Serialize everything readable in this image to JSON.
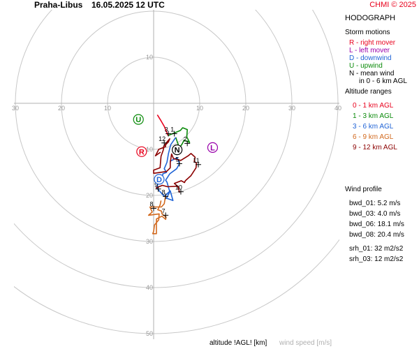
{
  "header": {
    "station": "Praha-Libus",
    "datetime": "16.05.2025 12 UTC",
    "copyright": "CHMI © 2025"
  },
  "sidebar": {
    "title": "HODOGRAPH",
    "storm_motions": {
      "heading": "Storm motions",
      "items": [
        {
          "text": "R - right mover",
          "color": "#e8001c"
        },
        {
          "text": "L - left mover",
          "color": "#9900aa"
        },
        {
          "text": "D - downwind",
          "color": "#1f63d6"
        },
        {
          "text": "U - upwind",
          "color": "#0a8a0a"
        },
        {
          "text": "N - mean wind",
          "color": "#000000"
        },
        {
          "text": "in 0 - 6 km AGL",
          "color": "#000000"
        }
      ]
    },
    "altitude_ranges": {
      "heading": "Altitude ranges",
      "items": [
        {
          "text": "0 - 1 km AGL",
          "color": "#e8001c"
        },
        {
          "text": "1 - 3 km AGL",
          "color": "#0a8a0a"
        },
        {
          "text": "3 - 6 km AGL",
          "color": "#1f63d6"
        },
        {
          "text": "6 - 9 km AGL",
          "color": "#d2691e"
        },
        {
          "text": "9 - 12 km AGL",
          "color": "#8b0000"
        }
      ]
    },
    "wind_profile": {
      "heading": "Wind profile",
      "items": [
        {
          "text": "bwd_01: 5.2 m/s"
        },
        {
          "text": "bwd_03: 4.0 m/s"
        },
        {
          "text": "bwd_06: 18.1 m/s"
        },
        {
          "text": "bwd_08: 20.4 m/s"
        },
        {
          "text": "srh_01: 32 m2/s2"
        },
        {
          "text": "srh_03: 12 m2/s2"
        }
      ]
    }
  },
  "footer": {
    "altitude_label": "altitude !AGL! [km]",
    "wind_speed_label": "wind speed [m/s]"
  },
  "chart_data": {
    "type": "line",
    "title": "HODOGRAPH",
    "xlim": [
      -30,
      40
    ],
    "ylim": [
      -50,
      20
    ],
    "rings": [
      10,
      20,
      30,
      40,
      50
    ],
    "ring_labels": [
      "10",
      "20",
      "30",
      "40",
      "50"
    ],
    "axis_labels": [
      "30",
      "20",
      "10",
      "10",
      "20",
      "30",
      "40"
    ],
    "axis_label_positions": [
      -30,
      -20,
      -10,
      10,
      20,
      30,
      40
    ],
    "grid": true,
    "series": [
      {
        "name": "0 - 1 km AGL",
        "color": "#e8001c",
        "points": [
          [
            0.8,
            -2.5
          ],
          [
            1.6,
            -3.8
          ],
          [
            2.3,
            -5.0
          ],
          [
            2.8,
            -6.2
          ],
          [
            3.1,
            -7.0
          ]
        ]
      },
      {
        "name": "1 - 3 km AGL",
        "color": "#0a8a0a",
        "points": [
          [
            3.1,
            -7.0
          ],
          [
            4.6,
            -6.4
          ],
          [
            5.8,
            -5.9
          ],
          [
            6.3,
            -5.3
          ],
          [
            7.3,
            -5.7
          ],
          [
            7.2,
            -7.3
          ],
          [
            7.8,
            -8.5
          ],
          [
            6.6,
            -8.0
          ],
          [
            6.2,
            -8.8
          ],
          [
            5.6,
            -9.7
          ],
          [
            5.0,
            -8.0
          ],
          [
            4.8,
            -7.4
          ]
        ]
      },
      {
        "name": "3 - 6 km AGL",
        "color": "#1f63d6",
        "points": [
          [
            4.8,
            -7.4
          ],
          [
            3.7,
            -9.0
          ],
          [
            3.2,
            -11.0
          ],
          [
            2.9,
            -12.8
          ],
          [
            2.3,
            -14.2
          ],
          [
            2.8,
            -15.0
          ],
          [
            2.0,
            -15.3
          ],
          [
            1.8,
            -16.5
          ],
          [
            1.0,
            -17.0
          ],
          [
            0.7,
            -18.4
          ],
          [
            2.3,
            -20.2
          ],
          [
            3.6,
            -19.0
          ],
          [
            4.2,
            -21.1
          ],
          [
            2.8,
            -20.6
          ],
          [
            3.5,
            -19.2
          ],
          [
            2.9,
            -17.1
          ],
          [
            2.6,
            -16.7
          ],
          [
            3.5,
            -15.3
          ],
          [
            5.0,
            -14.2
          ],
          [
            5.6,
            -13.1
          ],
          [
            5.1,
            -11.8
          ],
          [
            3.5,
            -12.6
          ]
        ]
      },
      {
        "name": "6 - 9 km AGL",
        "color": "#d2691e",
        "points": [
          [
            2.6,
            -20.0
          ],
          [
            2.3,
            -21.8
          ],
          [
            1.7,
            -22.5
          ],
          [
            -0.8,
            -22.5
          ],
          [
            -0.3,
            -23.6
          ],
          [
            -1.1,
            -24.3
          ],
          [
            1.2,
            -24.0
          ],
          [
            1.1,
            -25.3
          ],
          [
            0.2,
            -26.4
          ],
          [
            0.0,
            -27.8
          ],
          [
            -0.2,
            -28.3
          ],
          [
            0.6,
            -28.3
          ],
          [
            0.6,
            -25.1
          ],
          [
            1.8,
            -24.5
          ],
          [
            2.6,
            -25.2
          ],
          [
            2.7,
            -24.7
          ],
          [
            1.8,
            -24.0
          ],
          [
            1.7,
            -23.4
          ],
          [
            0.9,
            -23.1
          ],
          [
            1.4,
            -22.1
          ],
          [
            1.6,
            -21.1
          ]
        ]
      },
      {
        "name": "9 - 12 km AGL",
        "color": "#8b0000",
        "points": [
          [
            0.5,
            -18.4
          ],
          [
            1.9,
            -17.8
          ],
          [
            3.0,
            -18.1
          ],
          [
            5.3,
            -18.0
          ],
          [
            5.6,
            -19.3
          ],
          [
            5.3,
            -18.1
          ],
          [
            4.5,
            -17.4
          ],
          [
            6.0,
            -16.8
          ],
          [
            6.7,
            -17.2
          ],
          [
            6.9,
            -16.8
          ],
          [
            8.1,
            -15.7
          ],
          [
            9.2,
            -14.0
          ],
          [
            9.3,
            -13.0
          ],
          [
            8.8,
            -12.6
          ],
          [
            9.0,
            -11.7
          ],
          [
            8.1,
            -10.9
          ],
          [
            7.5,
            -11.4
          ],
          [
            5.9,
            -12.4
          ],
          [
            4.3,
            -12.0
          ],
          [
            3.9,
            -11.0
          ],
          [
            3.6,
            -12.9
          ],
          [
            3.6,
            -14.0
          ],
          [
            2.8,
            -14.8
          ],
          [
            0.0,
            -15.2
          ],
          [
            0.0,
            -14.5
          ],
          [
            1.4,
            -14.0
          ],
          [
            1.6,
            -11.5
          ],
          [
            2.1,
            -10.1
          ],
          [
            2.2,
            -9.3
          ],
          [
            2.8,
            -8.5
          ],
          [
            3.5,
            -7.7
          ],
          [
            3.2,
            -8.4
          ],
          [
            2.6,
            -9.0
          ],
          [
            2.6,
            -9.4
          ],
          [
            1.1,
            -10.0
          ],
          [
            0.4,
            -11.4
          ],
          [
            1.5,
            -10.6
          ]
        ]
      }
    ],
    "height_marks": [
      {
        "label": "1",
        "x": 4.5,
        "y": -6.6
      },
      {
        "label": "2",
        "x": 7.3,
        "y": -8.7
      },
      {
        "label": "3",
        "x": 3.2,
        "y": -6.6
      },
      {
        "label": "5",
        "x": 5.6,
        "y": -13.1
      },
      {
        "label": "7",
        "x": 2.6,
        "y": -24.3
      },
      {
        "label": "8",
        "x": 2.6,
        "y": -20.2
      },
      {
        "label": "8",
        "x": 0.0,
        "y": -22.8
      },
      {
        "label": "9",
        "x": 1.0,
        "y": -18.6
      },
      {
        "label": "10",
        "x": 5.9,
        "y": -19.2
      },
      {
        "label": "11",
        "x": 9.7,
        "y": -13.3
      },
      {
        "label": "12",
        "x": 2.3,
        "y": -8.6
      }
    ],
    "storm_motions": [
      {
        "label": "U",
        "x": -3.3,
        "y": -3.5,
        "color": "#0a8a0a"
      },
      {
        "label": "R",
        "x": -2.6,
        "y": -10.5,
        "color": "#e8001c"
      },
      {
        "label": "N",
        "x": 5.1,
        "y": -10.1,
        "color": "#000000"
      },
      {
        "label": "L",
        "x": 12.8,
        "y": -9.6,
        "color": "#9900aa"
      },
      {
        "label": "D",
        "x": 1.2,
        "y": -16.5,
        "color": "#1f63d6"
      }
    ]
  }
}
